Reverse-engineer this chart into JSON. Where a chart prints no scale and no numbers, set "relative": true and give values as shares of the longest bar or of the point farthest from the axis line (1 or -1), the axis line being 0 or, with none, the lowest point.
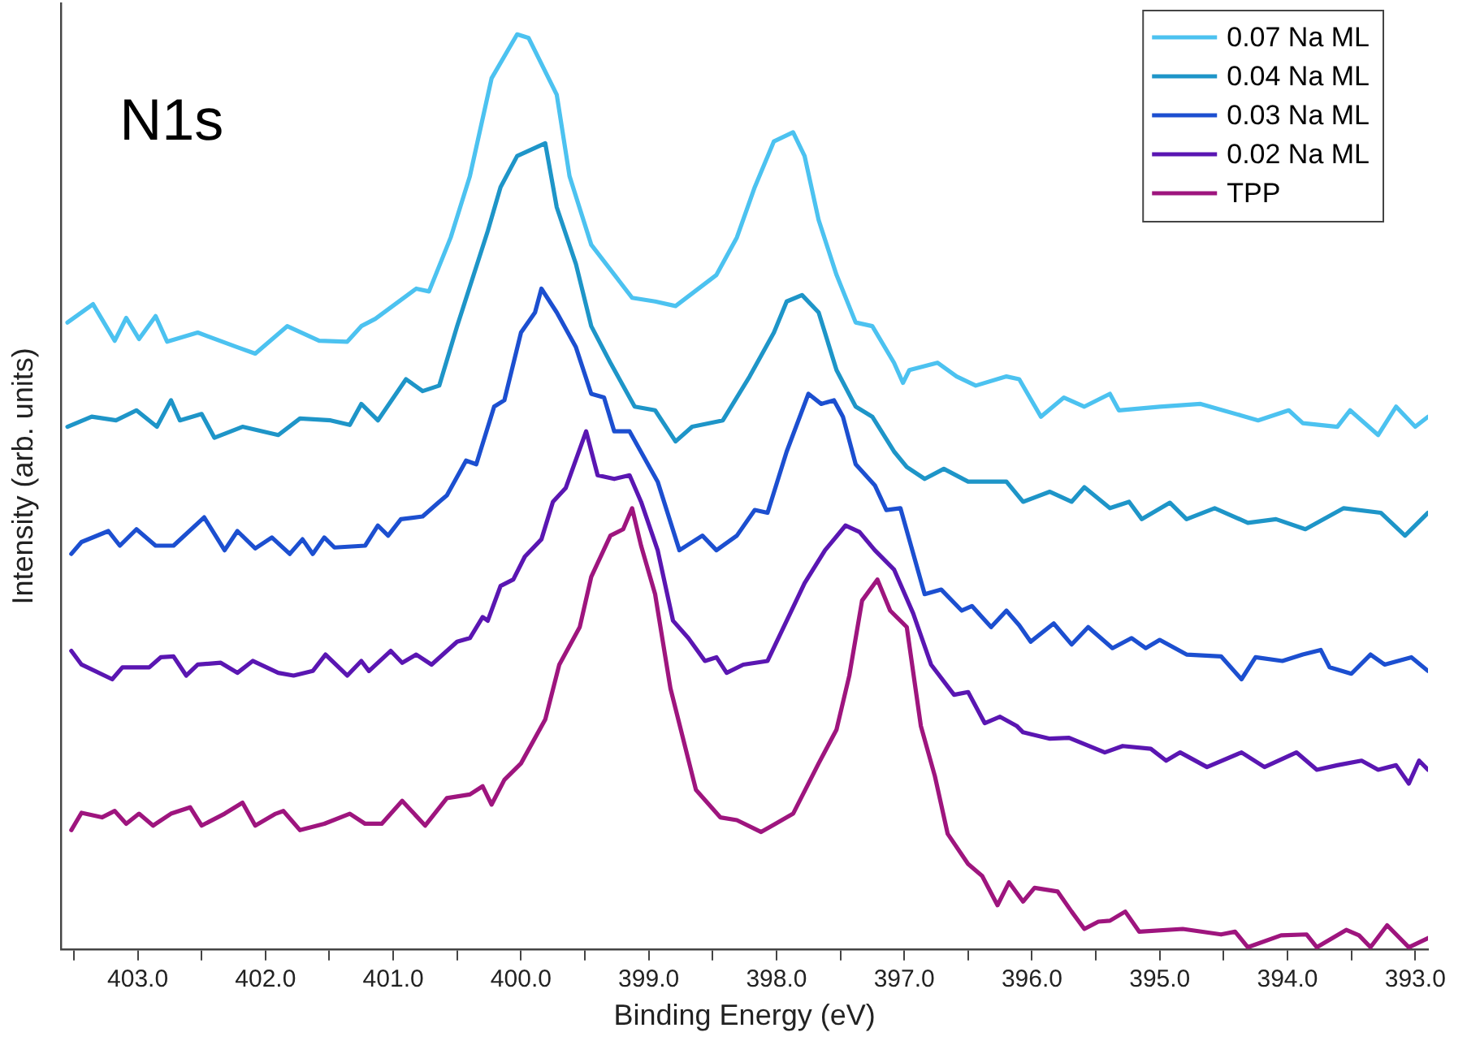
{
  "chart_data": {
    "type": "line",
    "title": "N1s",
    "xlabel": "Binding Energy (eV)",
    "ylabel": "Intensity (arb. units)",
    "relative": true,
    "legend": "top right",
    "xlim": [
      403.6,
      392.9
    ],
    "xticks": [
      {
        "value": 403.5,
        "label": null
      },
      {
        "value": 403,
        "label": "403.0"
      },
      {
        "value": 402.5,
        "label": null
      },
      {
        "value": 402,
        "label": "402.0"
      },
      {
        "value": 401.5,
        "label": null
      },
      {
        "value": 401,
        "label": "401.0"
      },
      {
        "value": 400.5,
        "label": null
      },
      {
        "value": 400,
        "label": "400.0"
      },
      {
        "value": 399.5,
        "label": null
      },
      {
        "value": 399,
        "label": "399.0"
      },
      {
        "value": 398.5,
        "label": null
      },
      {
        "value": 398,
        "label": "398.0"
      },
      {
        "value": 397.5,
        "label": null
      },
      {
        "value": 397,
        "label": "397.0"
      },
      {
        "value": 396.5,
        "label": null
      },
      {
        "value": 396,
        "label": "396.0"
      },
      {
        "value": 395.5,
        "label": null
      },
      {
        "value": 395,
        "label": "395.0"
      },
      {
        "value": 394.5,
        "label": null
      },
      {
        "value": 394,
        "label": "394.0"
      },
      {
        "value": 393.5,
        "label": null
      },
      {
        "value": 393,
        "label": "393.0"
      }
    ],
    "series": [
      {
        "name": "0.07 Na ML",
        "color": "#4cc2f0",
        "x": [
          403.55,
          403.35,
          403.18,
          403.09,
          402.99,
          402.86,
          402.77,
          402.53,
          402.22,
          402.08,
          401.83,
          401.58,
          401.36,
          401.25,
          401.14,
          400.82,
          400.72,
          400.55,
          400.4,
          400.23,
          400.03,
          399.94,
          399.72,
          399.62,
          399.45,
          399.13,
          398.95,
          398.79,
          398.47,
          398.31,
          398.17,
          398.02,
          397.87,
          397.78,
          397.67,
          397.53,
          397.38,
          397.25,
          397.08,
          397.01,
          396.96,
          396.74,
          396.59,
          396.44,
          396.2,
          396.1,
          395.93,
          395.75,
          395.59,
          395.39,
          395.32,
          395,
          394.68,
          394.23,
          393.99,
          393.88,
          393.61,
          393.51,
          393.29,
          393.15,
          393,
          392.9
        ],
        "values": [
          0.685,
          0.705,
          0.665,
          0.69,
          0.667,
          0.692,
          0.664,
          0.674,
          0.658,
          0.651,
          0.681,
          0.665,
          0.664,
          0.681,
          0.689,
          0.722,
          0.719,
          0.778,
          0.845,
          0.952,
          1,
          0.996,
          0.934,
          0.845,
          0.77,
          0.712,
          0.708,
          0.703,
          0.737,
          0.778,
          0.833,
          0.883,
          0.893,
          0.867,
          0.797,
          0.737,
          0.685,
          0.681,
          0.641,
          0.619,
          0.633,
          0.641,
          0.626,
          0.616,
          0.626,
          0.623,
          0.582,
          0.603,
          0.593,
          0.607,
          0.589,
          0.593,
          0.596,
          0.578,
          0.589,
          0.575,
          0.571,
          0.589,
          0.562,
          0.593,
          0.571,
          0.582
        ]
      },
      {
        "name": "0.04 Na ML",
        "color": "#1e95c8",
        "x": [
          403.55,
          403.36,
          403.17,
          403.01,
          402.85,
          402.74,
          402.67,
          402.5,
          402.4,
          402.18,
          401.9,
          401.73,
          401.49,
          401.34,
          401.25,
          401.12,
          400.9,
          400.77,
          400.64,
          400.5,
          400.26,
          400.16,
          400.03,
          399.81,
          399.72,
          399.57,
          399.45,
          399.3,
          399.11,
          398.95,
          398.79,
          398.66,
          398.42,
          398.21,
          398.02,
          397.92,
          397.8,
          397.67,
          397.53,
          397.38,
          397.25,
          397.08,
          396.98,
          396.84,
          396.69,
          396.5,
          396.2,
          396.07,
          395.86,
          395.69,
          395.59,
          395.39,
          395.24,
          395.14,
          394.92,
          394.79,
          394.57,
          394.31,
          394.09,
          393.86,
          393.56,
          393.27,
          393.08,
          392.9
        ],
        "values": [
          0.571,
          0.582,
          0.578,
          0.589,
          0.571,
          0.6,
          0.578,
          0.585,
          0.559,
          0.571,
          0.562,
          0.58,
          0.578,
          0.573,
          0.596,
          0.578,
          0.623,
          0.61,
          0.616,
          0.681,
          0.785,
          0.833,
          0.867,
          0.881,
          0.811,
          0.749,
          0.681,
          0.641,
          0.593,
          0.589,
          0.555,
          0.571,
          0.578,
          0.626,
          0.674,
          0.708,
          0.715,
          0.696,
          0.633,
          0.593,
          0.582,
          0.544,
          0.527,
          0.514,
          0.525,
          0.511,
          0.511,
          0.489,
          0.5,
          0.489,
          0.505,
          0.482,
          0.489,
          0.47,
          0.488,
          0.47,
          0.482,
          0.466,
          0.47,
          0.459,
          0.482,
          0.477,
          0.452,
          0.477
        ]
      },
      {
        "name": "0.03 Na ML",
        "color": "#1c4fd0",
        "x": [
          403.52,
          403.44,
          403.23,
          403.14,
          403.01,
          402.86,
          402.72,
          402.48,
          402.32,
          402.22,
          402.08,
          401.95,
          401.81,
          401.71,
          401.63,
          401.54,
          401.46,
          401.22,
          401.12,
          401.04,
          400.94,
          400.77,
          400.64,
          400.58,
          400.43,
          400.35,
          400.21,
          400.13,
          400,
          399.89,
          399.84,
          399.72,
          399.57,
          399.45,
          399.35,
          399.27,
          399.15,
          398.93,
          398.76,
          398.58,
          398.47,
          398.31,
          398.17,
          398.07,
          397.92,
          397.75,
          397.65,
          397.55,
          397.48,
          397.38,
          397.23,
          397.14,
          397.03,
          396.84,
          396.71,
          396.55,
          396.47,
          396.32,
          396.2,
          396.1,
          396.01,
          395.83,
          395.69,
          395.56,
          395.37,
          395.22,
          395.11,
          395,
          394.79,
          394.52,
          394.36,
          394.25,
          394.04,
          393.88,
          393.74,
          393.67,
          393.5,
          393.35,
          393.24,
          393.03,
          392.9
        ],
        "values": [
          0.432,
          0.445,
          0.457,
          0.441,
          0.459,
          0.441,
          0.441,
          0.472,
          0.436,
          0.457,
          0.438,
          0.45,
          0.432,
          0.448,
          0.432,
          0.45,
          0.439,
          0.441,
          0.463,
          0.452,
          0.47,
          0.473,
          0.489,
          0.496,
          0.534,
          0.53,
          0.593,
          0.6,
          0.674,
          0.696,
          0.722,
          0.696,
          0.658,
          0.607,
          0.603,
          0.566,
          0.566,
          0.511,
          0.436,
          0.452,
          0.436,
          0.452,
          0.48,
          0.477,
          0.544,
          0.607,
          0.596,
          0.6,
          0.582,
          0.53,
          0.507,
          0.48,
          0.482,
          0.388,
          0.393,
          0.37,
          0.375,
          0.352,
          0.37,
          0.354,
          0.336,
          0.356,
          0.333,
          0.352,
          0.329,
          0.34,
          0.329,
          0.338,
          0.322,
          0.32,
          0.295,
          0.319,
          0.315,
          0.322,
          0.327,
          0.308,
          0.301,
          0.322,
          0.311,
          0.319,
          0.304
        ]
      },
      {
        "name": "0.02 Na ML",
        "color": "#5a16b2",
        "x": [
          403.52,
          403.44,
          403.2,
          403.12,
          402.91,
          402.82,
          402.72,
          402.62,
          402.53,
          402.35,
          402.22,
          402.1,
          401.9,
          401.78,
          401.63,
          401.53,
          401.36,
          401.25,
          401.19,
          401.02,
          400.93,
          400.82,
          400.7,
          400.5,
          400.4,
          400.3,
          400.26,
          400.16,
          400.06,
          399.97,
          399.84,
          399.75,
          399.65,
          399.49,
          399.4,
          399.27,
          399.15,
          399.06,
          398.93,
          398.81,
          398.69,
          398.56,
          398.47,
          398.39,
          398.26,
          398.07,
          397.92,
          397.78,
          397.62,
          397.46,
          397.35,
          397.23,
          397.08,
          396.93,
          396.79,
          396.61,
          396.5,
          396.37,
          396.25,
          396.12,
          396.07,
          395.86,
          395.71,
          395.43,
          395.29,
          395.07,
          394.95,
          394.84,
          394.63,
          394.36,
          394.18,
          393.93,
          393.77,
          393.61,
          393.42,
          393.29,
          393.15,
          393.05,
          392.97,
          392.9
        ],
        "values": [
          0.326,
          0.311,
          0.295,
          0.308,
          0.308,
          0.319,
          0.32,
          0.299,
          0.311,
          0.313,
          0.302,
          0.315,
          0.302,
          0.299,
          0.304,
          0.322,
          0.299,
          0.315,
          0.304,
          0.326,
          0.313,
          0.322,
          0.311,
          0.336,
          0.34,
          0.363,
          0.359,
          0.397,
          0.404,
          0.429,
          0.448,
          0.489,
          0.504,
          0.566,
          0.518,
          0.514,
          0.518,
          0.489,
          0.436,
          0.359,
          0.34,
          0.315,
          0.319,
          0.302,
          0.311,
          0.315,
          0.359,
          0.4,
          0.436,
          0.463,
          0.456,
          0.436,
          0.415,
          0.367,
          0.311,
          0.278,
          0.281,
          0.247,
          0.254,
          0.244,
          0.237,
          0.23,
          0.231,
          0.215,
          0.222,
          0.219,
          0.206,
          0.215,
          0.199,
          0.215,
          0.199,
          0.215,
          0.196,
          0.201,
          0.206,
          0.196,
          0.201,
          0.181,
          0.206,
          0.196
        ]
      },
      {
        "name": "TPP",
        "color": "#9e157e",
        "x": [
          403.52,
          403.44,
          403.28,
          403.18,
          403.09,
          402.99,
          402.88,
          402.74,
          402.59,
          402.5,
          402.32,
          402.18,
          402.08,
          401.92,
          401.86,
          401.73,
          401.54,
          401.34,
          401.22,
          401.09,
          400.93,
          400.75,
          400.58,
          400.4,
          400.3,
          400.23,
          400.13,
          400,
          399.81,
          399.7,
          399.54,
          399.45,
          399.3,
          399.2,
          399.13,
          399.06,
          398.95,
          398.83,
          398.63,
          398.44,
          398.31,
          398.12,
          397.87,
          397.67,
          397.53,
          397.43,
          397.33,
          397.21,
          397.11,
          396.98,
          396.87,
          396.76,
          396.66,
          396.5,
          396.39,
          396.27,
          396.18,
          396.07,
          395.98,
          395.8,
          395.69,
          395.59,
          395.48,
          395.39,
          395.27,
          395.16,
          394.82,
          394.52,
          394.41,
          394.31,
          394.05,
          393.85,
          393.77,
          393.54,
          393.44,
          393.35,
          393.22,
          393.05,
          392.9
        ],
        "values": [
          0.13,
          0.149,
          0.144,
          0.151,
          0.137,
          0.148,
          0.135,
          0.148,
          0.155,
          0.135,
          0.148,
          0.16,
          0.135,
          0.148,
          0.151,
          0.13,
          0.137,
          0.148,
          0.137,
          0.137,
          0.162,
          0.135,
          0.165,
          0.169,
          0.178,
          0.158,
          0.185,
          0.203,
          0.251,
          0.311,
          0.352,
          0.407,
          0.452,
          0.459,
          0.482,
          0.441,
          0.388,
          0.285,
          0.174,
          0.144,
          0.141,
          0.128,
          0.148,
          0.203,
          0.24,
          0.299,
          0.381,
          0.404,
          0.37,
          0.352,
          0.244,
          0.189,
          0.126,
          0.093,
          0.08,
          0.048,
          0.073,
          0.052,
          0.067,
          0.063,
          0.041,
          0.022,
          0.03,
          0.031,
          0.041,
          0.019,
          0.022,
          0.016,
          0.019,
          0.002,
          0.015,
          0.016,
          0.002,
          0.021,
          0.015,
          0.002,
          0.026,
          0.002,
          0.012
        ]
      }
    ]
  }
}
